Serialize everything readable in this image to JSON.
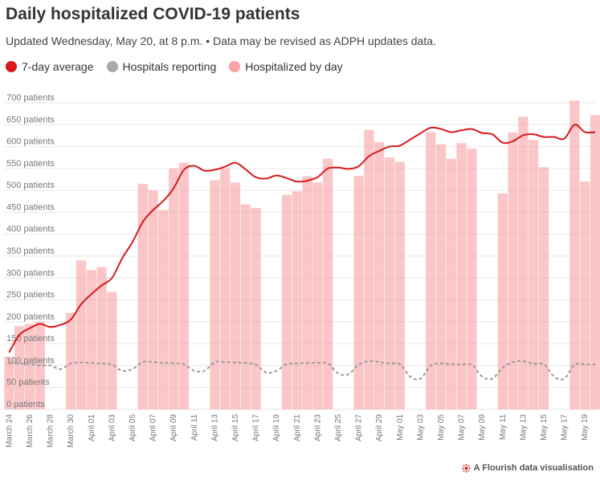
{
  "title": "Daily hospitalized COVID-19 patients",
  "subtitle": "Updated Wednesday, May 20, at 8 p.m. • Data may be revised as ADPH updates data.",
  "legend": [
    {
      "label": "7-day average",
      "color": "#d7191c"
    },
    {
      "label": "Hospitals reporting",
      "color": "#aaaaaa"
    },
    {
      "label": "Hospitalized by day",
      "color": "#f9a3a4"
    }
  ],
  "credit": "A Flourish data visualisation",
  "chart_data": {
    "type": "bar",
    "ylim": [
      0,
      700
    ],
    "yticks": [
      0,
      50,
      100,
      150,
      200,
      250,
      300,
      350,
      400,
      450,
      500,
      550,
      600,
      650,
      700
    ],
    "ytick_suffix": " patients",
    "xtick_labels": [
      {
        "day": 0,
        "label": "March 24"
      },
      {
        "day": 2,
        "label": "March 26"
      },
      {
        "day": 4,
        "label": "March 28"
      },
      {
        "day": 6,
        "label": "March 30"
      },
      {
        "day": 8,
        "label": "April 01"
      },
      {
        "day": 10,
        "label": "April 03"
      },
      {
        "day": 12,
        "label": "April 05"
      },
      {
        "day": 14,
        "label": "April 07"
      },
      {
        "day": 16,
        "label": "April 09"
      },
      {
        "day": 18,
        "label": "April 11"
      },
      {
        "day": 20,
        "label": "April 13"
      },
      {
        "day": 22,
        "label": "April 15"
      },
      {
        "day": 24,
        "label": "April 17"
      },
      {
        "day": 26,
        "label": "April 19"
      },
      {
        "day": 28,
        "label": "April 21"
      },
      {
        "day": 30,
        "label": "April 23"
      },
      {
        "day": 32,
        "label": "April 25"
      },
      {
        "day": 34,
        "label": "April 27"
      },
      {
        "day": 36,
        "label": "April 29"
      },
      {
        "day": 38,
        "label": "May 01"
      },
      {
        "day": 40,
        "label": "May 03"
      },
      {
        "day": 42,
        "label": "May 05"
      },
      {
        "day": 44,
        "label": "May 07"
      },
      {
        "day": 46,
        "label": "May 09"
      },
      {
        "day": 48,
        "label": "May 11"
      },
      {
        "day": 50,
        "label": "May 13"
      },
      {
        "day": 52,
        "label": "May 15"
      },
      {
        "day": 54,
        "label": "May 17"
      },
      {
        "day": 56,
        "label": "May 19"
      }
    ],
    "hospitalized_by_day": [
      {
        "day": 0,
        "value": 120
      },
      {
        "day": 1,
        "value": 190
      },
      {
        "day": 2,
        "value": 195
      },
      {
        "day": 3,
        "value": 200
      },
      {
        "day": 6,
        "value": 220
      },
      {
        "day": 7,
        "value": 340
      },
      {
        "day": 8,
        "value": 318
      },
      {
        "day": 9,
        "value": 325
      },
      {
        "day": 10,
        "value": 268
      },
      {
        "day": 13,
        "value": 515
      },
      {
        "day": 14,
        "value": 500
      },
      {
        "day": 15,
        "value": 455
      },
      {
        "day": 16,
        "value": 550
      },
      {
        "day": 17,
        "value": 563
      },
      {
        "day": 20,
        "value": 523
      },
      {
        "day": 21,
        "value": 550
      },
      {
        "day": 22,
        "value": 518
      },
      {
        "day": 23,
        "value": 468
      },
      {
        "day": 24,
        "value": 460
      },
      {
        "day": 27,
        "value": 490
      },
      {
        "day": 28,
        "value": 498
      },
      {
        "day": 29,
        "value": 532
      },
      {
        "day": 30,
        "value": 518
      },
      {
        "day": 31,
        "value": 572
      },
      {
        "day": 34,
        "value": 533
      },
      {
        "day": 35,
        "value": 638
      },
      {
        "day": 36,
        "value": 610
      },
      {
        "day": 37,
        "value": 575
      },
      {
        "day": 38,
        "value": 565
      },
      {
        "day": 41,
        "value": 633
      },
      {
        "day": 42,
        "value": 605
      },
      {
        "day": 43,
        "value": 572
      },
      {
        "day": 44,
        "value": 608
      },
      {
        "day": 45,
        "value": 595
      },
      {
        "day": 48,
        "value": 493
      },
      {
        "day": 49,
        "value": 632
      },
      {
        "day": 50,
        "value": 668
      },
      {
        "day": 51,
        "value": 615
      },
      {
        "day": 52,
        "value": 553
      },
      {
        "day": 55,
        "value": 705
      },
      {
        "day": 56,
        "value": 520
      },
      {
        "day": 57,
        "value": 672
      }
    ],
    "seven_day_average": [
      {
        "day": 0,
        "value": 130
      },
      {
        "day": 1,
        "value": 170
      },
      {
        "day": 2,
        "value": 185
      },
      {
        "day": 3,
        "value": 195
      },
      {
        "day": 4,
        "value": 188
      },
      {
        "day": 5,
        "value": 193
      },
      {
        "day": 6,
        "value": 205
      },
      {
        "day": 7,
        "value": 240
      },
      {
        "day": 8,
        "value": 263
      },
      {
        "day": 9,
        "value": 283
      },
      {
        "day": 10,
        "value": 300
      },
      {
        "day": 11,
        "value": 345
      },
      {
        "day": 12,
        "value": 382
      },
      {
        "day": 13,
        "value": 428
      },
      {
        "day": 14,
        "value": 455
      },
      {
        "day": 15,
        "value": 476
      },
      {
        "day": 16,
        "value": 505
      },
      {
        "day": 17,
        "value": 547
      },
      {
        "day": 18,
        "value": 556
      },
      {
        "day": 19,
        "value": 545
      },
      {
        "day": 20,
        "value": 547
      },
      {
        "day": 21,
        "value": 554
      },
      {
        "day": 22,
        "value": 563
      },
      {
        "day": 23,
        "value": 548
      },
      {
        "day": 24,
        "value": 530
      },
      {
        "day": 25,
        "value": 527
      },
      {
        "day": 26,
        "value": 534
      },
      {
        "day": 27,
        "value": 528
      },
      {
        "day": 28,
        "value": 520
      },
      {
        "day": 29,
        "value": 522
      },
      {
        "day": 30,
        "value": 530
      },
      {
        "day": 31,
        "value": 550
      },
      {
        "day": 32,
        "value": 552
      },
      {
        "day": 33,
        "value": 549
      },
      {
        "day": 34,
        "value": 555
      },
      {
        "day": 35,
        "value": 578
      },
      {
        "day": 36,
        "value": 590
      },
      {
        "day": 37,
        "value": 600
      },
      {
        "day": 38,
        "value": 602
      },
      {
        "day": 39,
        "value": 616
      },
      {
        "day": 40,
        "value": 630
      },
      {
        "day": 41,
        "value": 643
      },
      {
        "day": 42,
        "value": 640
      },
      {
        "day": 43,
        "value": 633
      },
      {
        "day": 44,
        "value": 637
      },
      {
        "day": 45,
        "value": 640
      },
      {
        "day": 46,
        "value": 631
      },
      {
        "day": 47,
        "value": 628
      },
      {
        "day": 48,
        "value": 609
      },
      {
        "day": 49,
        "value": 612
      },
      {
        "day": 50,
        "value": 626
      },
      {
        "day": 51,
        "value": 628
      },
      {
        "day": 52,
        "value": 622
      },
      {
        "day": 53,
        "value": 622
      },
      {
        "day": 54,
        "value": 618
      },
      {
        "day": 55,
        "value": 650
      },
      {
        "day": 56,
        "value": 633
      },
      {
        "day": 57,
        "value": 633
      }
    ],
    "hospitals_reporting": [
      {
        "day": 0,
        "value": 105
      },
      {
        "day": 1,
        "value": 105
      },
      {
        "day": 2,
        "value": 103
      },
      {
        "day": 3,
        "value": 100
      },
      {
        "day": 4,
        "value": 100
      },
      {
        "day": 5,
        "value": 92
      },
      {
        "day": 6,
        "value": 105
      },
      {
        "day": 7,
        "value": 107
      },
      {
        "day": 8,
        "value": 106
      },
      {
        "day": 9,
        "value": 105
      },
      {
        "day": 10,
        "value": 102
      },
      {
        "day": 11,
        "value": 88
      },
      {
        "day": 12,
        "value": 92
      },
      {
        "day": 13,
        "value": 108
      },
      {
        "day": 14,
        "value": 108
      },
      {
        "day": 15,
        "value": 106
      },
      {
        "day": 16,
        "value": 105
      },
      {
        "day": 17,
        "value": 103
      },
      {
        "day": 18,
        "value": 88
      },
      {
        "day": 19,
        "value": 88
      },
      {
        "day": 20,
        "value": 108
      },
      {
        "day": 21,
        "value": 108
      },
      {
        "day": 22,
        "value": 107
      },
      {
        "day": 23,
        "value": 106
      },
      {
        "day": 24,
        "value": 102
      },
      {
        "day": 25,
        "value": 84
      },
      {
        "day": 26,
        "value": 88
      },
      {
        "day": 27,
        "value": 103
      },
      {
        "day": 28,
        "value": 105
      },
      {
        "day": 29,
        "value": 106
      },
      {
        "day": 30,
        "value": 106
      },
      {
        "day": 31,
        "value": 105
      },
      {
        "day": 32,
        "value": 82
      },
      {
        "day": 33,
        "value": 80
      },
      {
        "day": 34,
        "value": 102
      },
      {
        "day": 35,
        "value": 110
      },
      {
        "day": 36,
        "value": 108
      },
      {
        "day": 37,
        "value": 105
      },
      {
        "day": 38,
        "value": 103
      },
      {
        "day": 39,
        "value": 75
      },
      {
        "day": 40,
        "value": 70
      },
      {
        "day": 41,
        "value": 100
      },
      {
        "day": 42,
        "value": 105
      },
      {
        "day": 43,
        "value": 103
      },
      {
        "day": 44,
        "value": 102
      },
      {
        "day": 45,
        "value": 102
      },
      {
        "day": 46,
        "value": 75
      },
      {
        "day": 47,
        "value": 70
      },
      {
        "day": 48,
        "value": 95
      },
      {
        "day": 49,
        "value": 108
      },
      {
        "day": 50,
        "value": 110
      },
      {
        "day": 51,
        "value": 104
      },
      {
        "day": 52,
        "value": 103
      },
      {
        "day": 53,
        "value": 75
      },
      {
        "day": 54,
        "value": 70
      },
      {
        "day": 55,
        "value": 102
      },
      {
        "day": 56,
        "value": 103
      },
      {
        "day": 57,
        "value": 102
      }
    ],
    "grid": true,
    "legend_position": "top-left"
  }
}
